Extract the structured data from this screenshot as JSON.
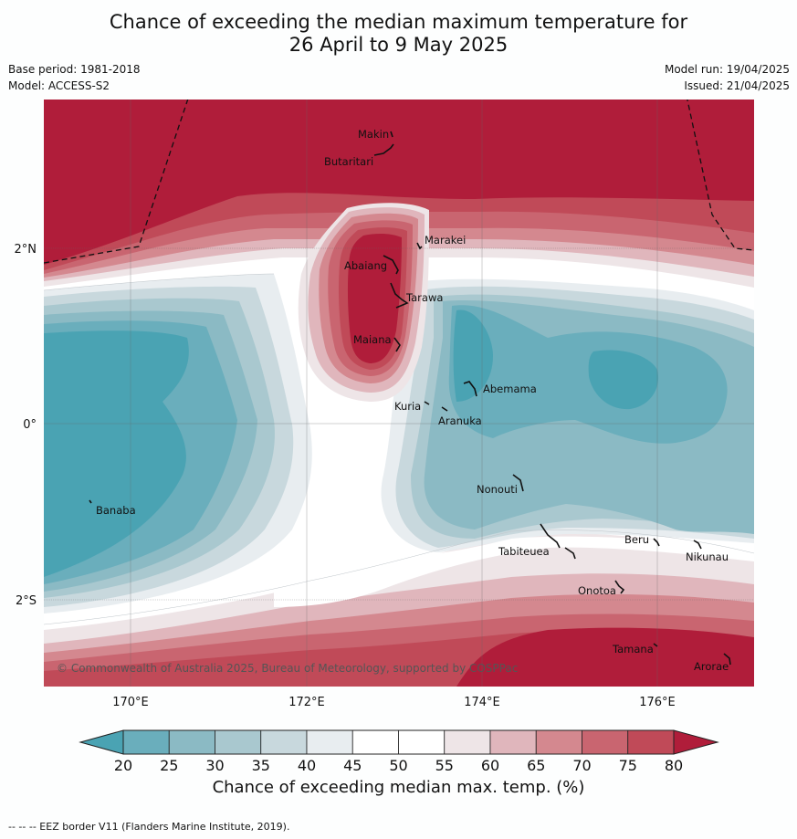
{
  "title": {
    "line1": "Chance of exceeding the median maximum temperature for",
    "line2": "26 April to 9 May 2025"
  },
  "meta": {
    "base_period": "Base period: 1981-2018",
    "model": "Model: ACCESS-S2",
    "model_run": "Model run: 19/04/2025",
    "issued": "Issued: 21/04/2025"
  },
  "map": {
    "lon_labels": [
      "170°E",
      "172°E",
      "174°E",
      "176°E"
    ],
    "lat_labels": [
      "2°N",
      "0°",
      "2°S"
    ],
    "places": [
      "Makin",
      "Butaritari",
      "Marakei",
      "Abaiang",
      "Tarawa",
      "Maiana",
      "Abemama",
      "Kuria",
      "Aranuka",
      "Nonouti",
      "Banaba",
      "Tabiteuea",
      "Beru",
      "Nikunau",
      "Onotoa",
      "Tamana",
      "Arorae"
    ],
    "copyright": "© Commonwealth of Australia 2025, Bureau of Meteorology, supported by COSPPac"
  },
  "colorbar": {
    "ticks": [
      "20",
      "25",
      "30",
      "35",
      "40",
      "45",
      "50",
      "55",
      "60",
      "65",
      "70",
      "75",
      "80"
    ],
    "colors": [
      "#4aa3b3",
      "#6aaebc",
      "#8bbac4",
      "#a9c8cf",
      "#c8d8dd",
      "#e8edf0",
      "#ffffff",
      "#ffffff",
      "#eee5e7",
      "#e0b6bc",
      "#d4888f",
      "#c96570",
      "#c04a58",
      "#b01d3a"
    ],
    "title": "Chance of exceeding median max. temp. (%)"
  },
  "footer": "--  --  -- EEZ border V11 (Flanders Marine Institute, 2019)."
}
